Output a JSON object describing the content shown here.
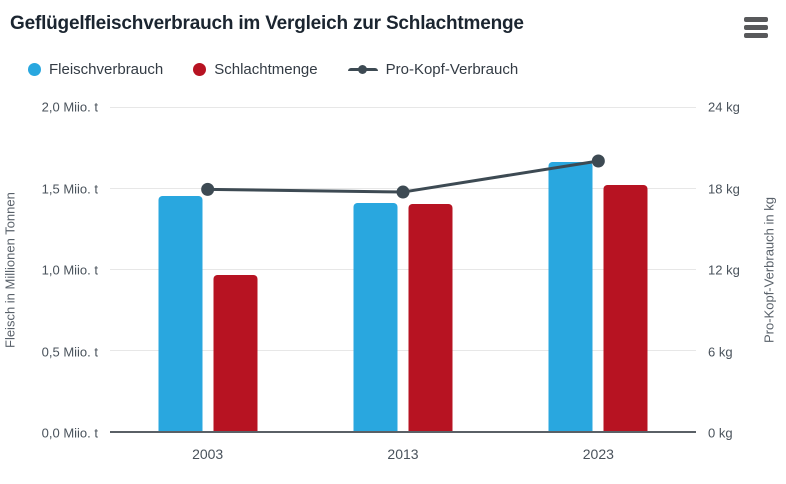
{
  "header": {
    "title": "Geflügelfleischverbrauch im Vergleich zur Schlachtmenge"
  },
  "menu": {
    "icon": "hamburger-icon"
  },
  "colors": {
    "blue": "#29a7df",
    "red": "#b71322",
    "line": "#3d4a53",
    "grid": "#e7e7e7",
    "axis_line": "#5a6066",
    "title_text": "#1b2530",
    "label_text": "#49525b"
  },
  "chart_data": {
    "type": "bar",
    "title": "Geflügelfleischverbrauch im Vergleich zur Schlachtmenge",
    "categories": [
      "2003",
      "2013",
      "2023"
    ],
    "series": [
      {
        "name": "Fleischverbrauch",
        "type": "bar",
        "axis": "left",
        "color": "#29a7df",
        "values": [
          1.45,
          1.41,
          1.66
        ]
      },
      {
        "name": "Schlachtmenge",
        "type": "bar",
        "axis": "left",
        "color": "#b71322",
        "values": [
          0.96,
          1.4,
          1.52
        ]
      },
      {
        "name": "Pro-Kopf-Verbrauch",
        "type": "line",
        "axis": "right",
        "color": "#3d4a53",
        "values": [
          17.9,
          17.7,
          20.0
        ]
      }
    ],
    "left_axis": {
      "title": "Fleisch in Millionen Tonnen",
      "range": [
        0,
        2.0
      ],
      "tick_labels_top_to_bottom": [
        "2,0 Miio. t",
        "1,5 Miio. t",
        "1,0 Miio. t",
        "0,5 Miio. t",
        "0,0 Miio. t"
      ]
    },
    "right_axis": {
      "title": "Pro-Kopf-Verbrauch in kg",
      "range": [
        0,
        24
      ],
      "tick_labels_top_to_bottom": [
        "24 kg",
        "18 kg",
        "12 kg",
        "6 kg",
        "0 kg"
      ]
    },
    "legend_position": "top",
    "grid": true
  }
}
